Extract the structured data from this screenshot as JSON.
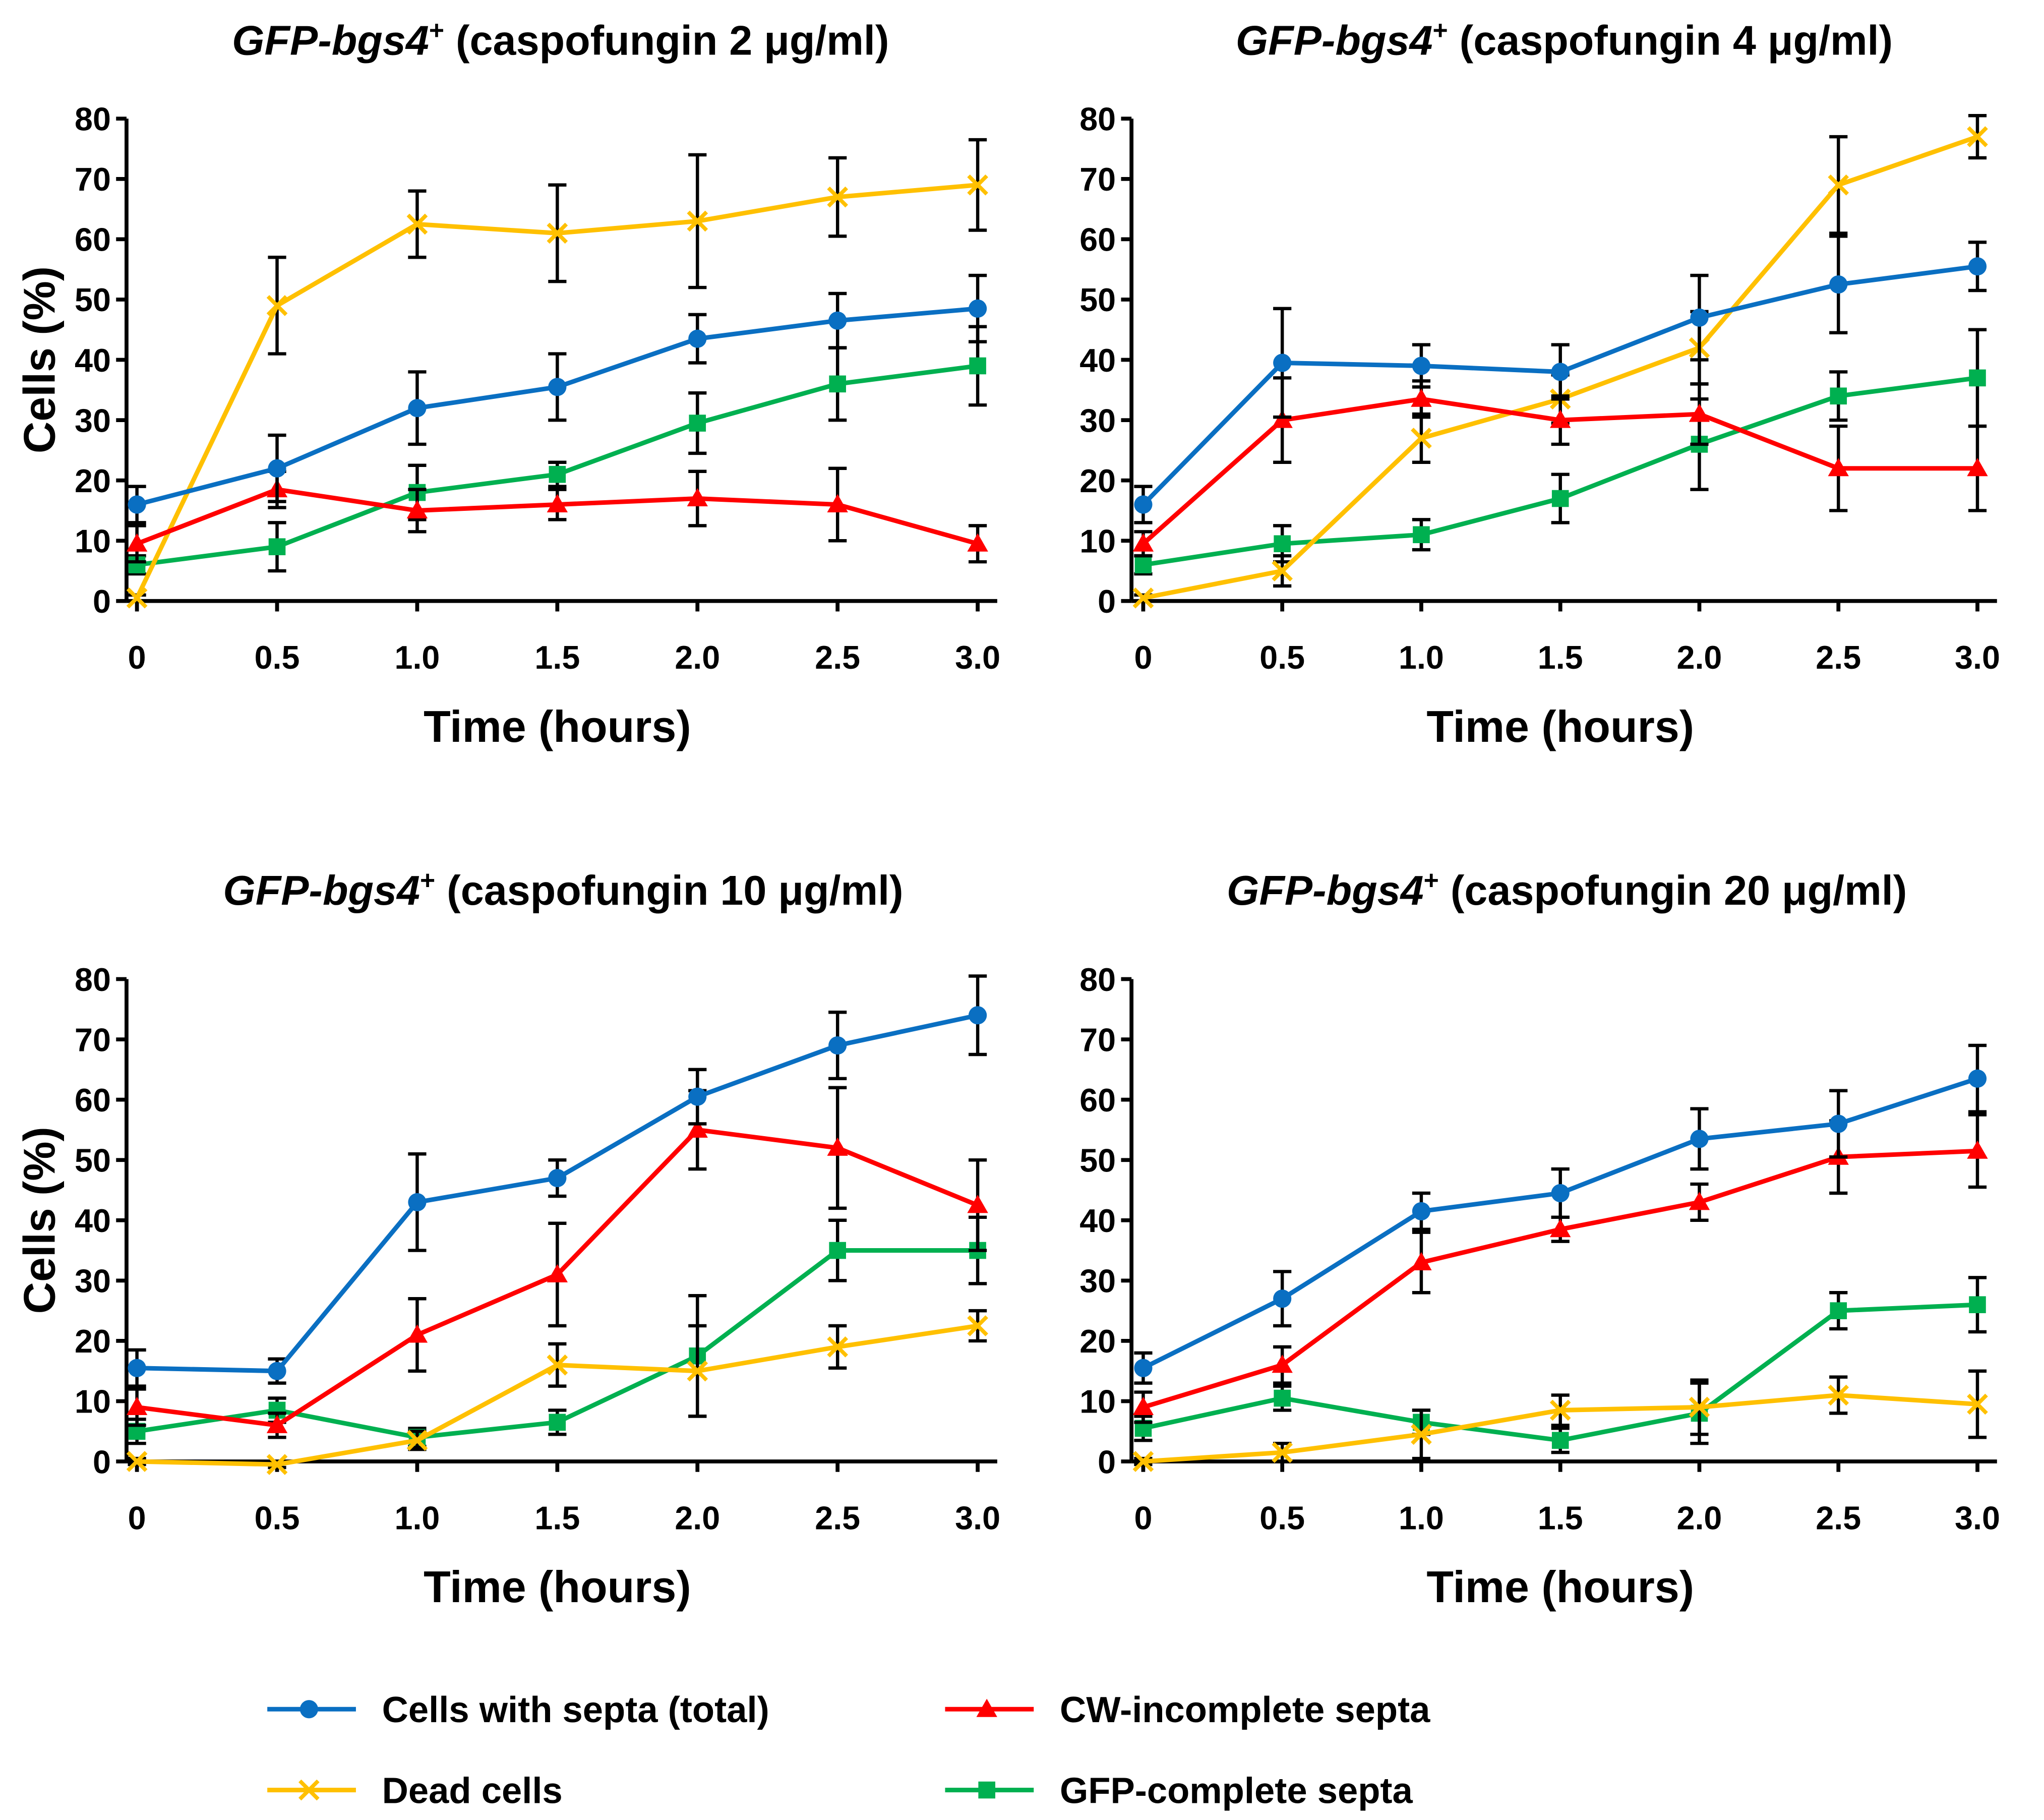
{
  "colors": {
    "blue": "#0a6fc2",
    "red": "#ff0000",
    "yellow": "#ffc000",
    "green": "#00b050",
    "axis": "#000000"
  },
  "legend": [
    {
      "key": "blue",
      "label": "Cells with septa (total)",
      "marker": "circle"
    },
    {
      "key": "red",
      "label": "CW-incomplete septa",
      "marker": "triangle"
    },
    {
      "key": "yellow",
      "label": "Dead cells",
      "marker": "cross"
    },
    {
      "key": "green",
      "label": "GFP-complete septa",
      "marker": "square"
    }
  ],
  "chart_data": [
    {
      "type": "line",
      "title_italic": "GFP-bgs4",
      "title_sup": "+",
      "title_rest": " (caspofungin 2 μg/ml)",
      "xlabel": "Time (hours)",
      "ylabel": "Cells (%)",
      "x": [
        0,
        0.5,
        1,
        1.5,
        2,
        2.5,
        3
      ],
      "x_tick_labels": [
        "0",
        "0.5",
        "1.0",
        "1.5",
        "2.0",
        "2.5",
        "3.0"
      ],
      "ylim": [
        0,
        80
      ],
      "y_ticks": [
        0,
        10,
        20,
        30,
        40,
        50,
        60,
        70,
        80
      ],
      "series": [
        {
          "key": "blue",
          "name": "Cells with septa (total)",
          "values": [
            16,
            22,
            32,
            35.5,
            43.5,
            46.5,
            48.5
          ],
          "err": [
            3,
            5.5,
            6,
            5.5,
            4,
            4.5,
            5.5
          ]
        },
        {
          "key": "red",
          "name": "CW-incomplete septa",
          "values": [
            9.5,
            18.5,
            15,
            16,
            17,
            16,
            9.5
          ],
          "err": [
            3,
            3,
            3.5,
            2.5,
            4.5,
            6,
            3
          ]
        },
        {
          "key": "yellow",
          "name": "Dead cells",
          "values": [
            0.5,
            49,
            62.5,
            61,
            63,
            67,
            69
          ],
          "err": [
            0.5,
            8,
            5.5,
            8,
            11,
            6.5,
            7.5
          ]
        },
        {
          "key": "green",
          "name": "GFP-complete septa",
          "values": [
            6,
            9,
            18,
            21,
            29.5,
            36,
            39
          ],
          "err": [
            1.5,
            4,
            4.5,
            2,
            5,
            6,
            6.5
          ]
        }
      ]
    },
    {
      "type": "line",
      "title_italic": "GFP-bgs4",
      "title_sup": "+",
      "title_rest": " (caspofungin 4 μg/ml)",
      "xlabel": "Time (hours)",
      "ylabel": "",
      "x": [
        0,
        0.5,
        1,
        1.5,
        2,
        2.5,
        3
      ],
      "x_tick_labels": [
        "0",
        "0.5",
        "1.0",
        "1.5",
        "2.0",
        "2.5",
        "3.0"
      ],
      "ylim": [
        0,
        80
      ],
      "y_ticks": [
        0,
        10,
        20,
        30,
        40,
        50,
        60,
        70,
        80
      ],
      "series": [
        {
          "key": "blue",
          "name": "Cells with septa (total)",
          "values": [
            16,
            39.5,
            39,
            38,
            47,
            52.5,
            55.5
          ],
          "err": [
            3,
            9,
            3.5,
            4.5,
            7,
            8,
            4
          ]
        },
        {
          "key": "red",
          "name": "CW-incomplete septa",
          "values": [
            9.5,
            30,
            33.5,
            30,
            31,
            22,
            22
          ],
          "err": [
            2,
            7,
            3,
            4,
            5,
            7,
            7
          ]
        },
        {
          "key": "yellow",
          "name": "Dead cells",
          "values": [
            0.5,
            5,
            27,
            33.5,
            42,
            69,
            77
          ],
          "err": [
            0.5,
            2.5,
            4,
            4,
            6,
            8,
            3.5
          ]
        },
        {
          "key": "green",
          "name": "GFP-complete septa",
          "values": [
            6,
            9.5,
            11,
            17,
            26,
            34,
            37
          ],
          "err": [
            1.5,
            3,
            2.5,
            4,
            7.5,
            4,
            8
          ]
        }
      ]
    },
    {
      "type": "line",
      "title_italic": "GFP-bgs4",
      "title_sup": "+",
      "title_rest": " (caspofungin 10 μg/ml)",
      "xlabel": "Time (hours)",
      "ylabel": "Cells (%)",
      "x": [
        0,
        0.5,
        1,
        1.5,
        2,
        2.5,
        3
      ],
      "x_tick_labels": [
        "0",
        "0.5",
        "1.0",
        "1.5",
        "2.0",
        "2.5",
        "3.0"
      ],
      "ylim": [
        0,
        80
      ],
      "y_ticks": [
        0,
        10,
        20,
        30,
        40,
        50,
        60,
        70,
        80
      ],
      "series": [
        {
          "key": "blue",
          "name": "Cells with septa (total)",
          "values": [
            15.5,
            15,
            43,
            47,
            60.5,
            69,
            74
          ],
          "err": [
            3,
            2,
            8,
            3,
            4.5,
            5.5,
            6.5
          ]
        },
        {
          "key": "red",
          "name": "CW-incomplete septa",
          "values": [
            9,
            6,
            21,
            31,
            55,
            52,
            42.5
          ],
          "err": [
            3,
            2,
            6,
            8.5,
            6.5,
            10,
            7.5
          ]
        },
        {
          "key": "yellow",
          "name": "Dead cells",
          "values": [
            0,
            -0.5,
            3.5,
            16,
            15,
            19,
            22.5
          ],
          "err": [
            0.5,
            0.5,
            1.5,
            3.5,
            7.5,
            3.5,
            2.5
          ]
        },
        {
          "key": "green",
          "name": "GFP-complete septa",
          "values": [
            5,
            8.5,
            4,
            6.5,
            17.5,
            35,
            35
          ],
          "err": [
            2,
            2,
            1.5,
            2,
            10,
            5,
            5.5
          ]
        }
      ]
    },
    {
      "type": "line",
      "title_italic": "GFP-bgs4",
      "title_sup": "+",
      "title_rest": " (caspofungin 20 μg/ml)",
      "xlabel": "Time (hours)",
      "ylabel": "",
      "x": [
        0,
        0.5,
        1,
        1.5,
        2,
        2.5,
        3
      ],
      "x_tick_labels": [
        "0",
        "0.5",
        "1.0",
        "1.5",
        "2.0",
        "2.5",
        "3.0"
      ],
      "ylim": [
        0,
        80
      ],
      "y_ticks": [
        0,
        10,
        20,
        30,
        40,
        50,
        60,
        70,
        80
      ],
      "series": [
        {
          "key": "blue",
          "name": "Cells with septa (total)",
          "values": [
            15.5,
            27,
            41.5,
            44.5,
            53.5,
            56,
            63.5
          ],
          "err": [
            2.5,
            4.5,
            3,
            4,
            5,
            5.5,
            5.5
          ]
        },
        {
          "key": "red",
          "name": "CW-incomplete septa",
          "values": [
            9,
            16,
            33,
            38.5,
            43,
            50.5,
            51.5
          ],
          "err": [
            2.5,
            3,
            5,
            2,
            3,
            6,
            6
          ]
        },
        {
          "key": "yellow",
          "name": "Dead cells",
          "values": [
            0,
            1.5,
            4.5,
            8.5,
            9,
            11,
            9.5
          ],
          "err": [
            0.5,
            1.5,
            4,
            2.5,
            4.5,
            3,
            5.5
          ]
        },
        {
          "key": "green",
          "name": "GFP-complete septa",
          "values": [
            5.5,
            10.5,
            6.5,
            3.5,
            8,
            25,
            26
          ],
          "err": [
            2,
            2,
            2,
            2,
            5,
            3,
            4.5
          ]
        }
      ]
    }
  ]
}
